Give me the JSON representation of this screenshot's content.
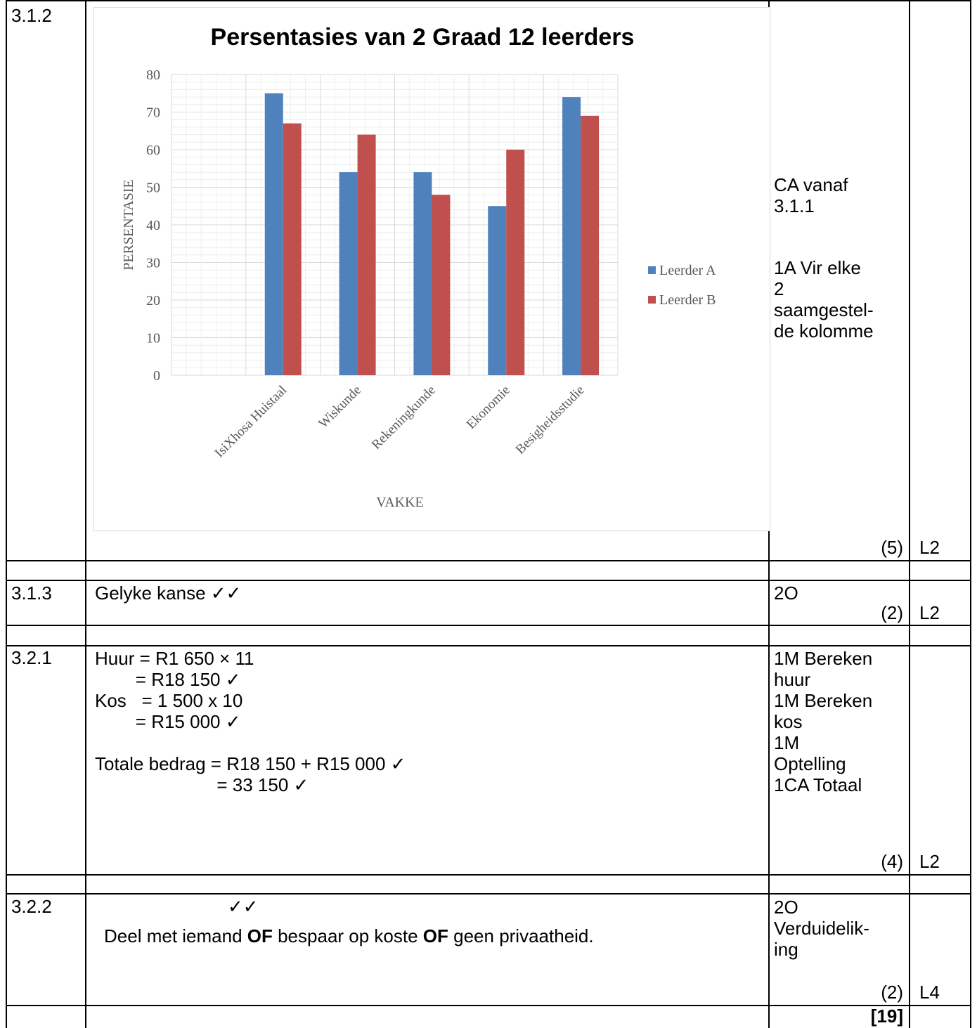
{
  "rows": {
    "q312": {
      "num": "3.1.2",
      "memo_lines": [
        "CA vanaf",
        "3.1.1",
        "",
        "1A Vir elke",
        "2",
        "saamgestel-",
        "de kolomme"
      ],
      "marks": "(5)",
      "level": "L2"
    },
    "q313": {
      "num": "3.1.3",
      "answer": "Gelyke kanse ✓✓",
      "memo": "2O",
      "marks": "(2)",
      "level": "L2"
    },
    "q321": {
      "num": "3.2.1",
      "lines": [
        "Huur = R1 650 × 11",
        "        = R18 150 ✓",
        "Kos   = 1 500 x 10",
        "        = R15 000 ✓",
        "",
        "Totale bedrag = R18 150 + R15 000 ✓",
        "                        = 33 150 ✓"
      ],
      "memo_lines": [
        "1M Bereken",
        "huur",
        "1M Bereken",
        "kos",
        "1M",
        "Optelling",
        "1CA Totaal"
      ],
      "marks": "(4)",
      "level": "L2"
    },
    "q322": {
      "num": "3.2.2",
      "ticks": "✓✓",
      "answer_parts": [
        "Deel met iemand ",
        "OF",
        " bespaar op koste ",
        "OF",
        " geen privaatheid."
      ],
      "memo_lines": [
        "2O",
        "Verduidelik-",
        "ing"
      ],
      "marks": "(2)",
      "level": "L4"
    },
    "total": "[19]"
  },
  "chart_data": {
    "type": "bar",
    "title": "Persentasies van 2 Graad 12 leerders",
    "xlabel": "VAKKE",
    "ylabel": "PERSENTASIE",
    "ylim": [
      0,
      80
    ],
    "yticks": [
      "0",
      "10",
      "20",
      "30",
      "40",
      "50",
      "60",
      "70",
      "80"
    ],
    "categories": [
      "",
      "IsiXhosa Huistaal",
      "Wiskunde",
      "Rekeningkunde",
      "Ekonomie",
      "Besigheidsstudie"
    ],
    "series": [
      {
        "name": "Leerder A",
        "color": "#4f81bd",
        "values": [
          null,
          75,
          54,
          54,
          45,
          74
        ]
      },
      {
        "name": "Leerder B",
        "color": "#c0504d",
        "values": [
          null,
          67,
          64,
          48,
          60,
          69
        ]
      }
    ],
    "grid": true,
    "legend": "right"
  }
}
